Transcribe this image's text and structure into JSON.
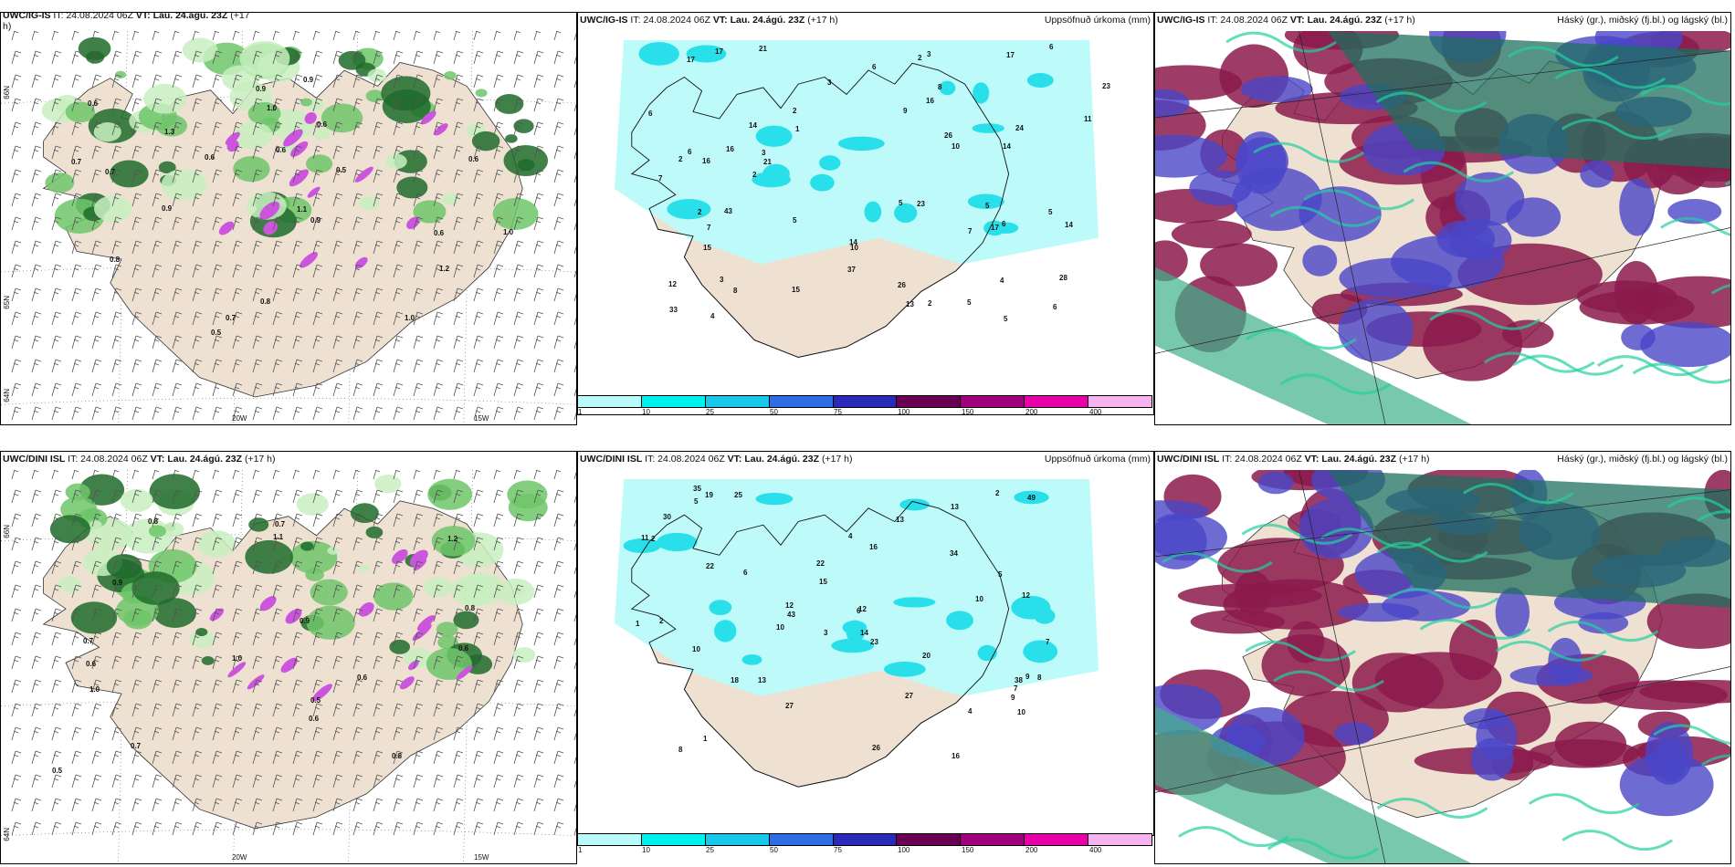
{
  "row1": {
    "left_title_model": "UWC/IG-IS",
    "left_title_rest": " IT: 24.08.2024 06Z ",
    "left_title_vt": "VT: Lau. 24.ágú. 23Z",
    "left_title_tail": " (+17",
    "left_title_wrap": "h)",
    "mid_title_model": "UWC/IG-IS",
    "mid_title_rest": " IT: 24.08.2024 06Z ",
    "mid_title_vt": "VT: Lau. 24.ágú. 23Z",
    "mid_title_tail": " (+17 h)",
    "mid_right": "Uppsöfnuð úrkoma (mm)",
    "right_title_model": "UWC/IG-IS",
    "right_title_rest": " IT: 24.08.2024 06Z ",
    "right_title_vt": "VT: Lau. 24.ágú. 23Z",
    "right_title_tail": " (+17 h)",
    "right_right": "Háský (gr.), miðský (fj.bl.) og lágský (bl.)"
  },
  "row2": {
    "left_title_model": "UWC/DINI ISL",
    "left_title_rest": " IT: 24.08.2024 06Z ",
    "left_title_vt": "VT: Lau. 24.ágú. 23Z",
    "left_title_tail": " (+17 h)",
    "mid_title_model": "UWC/DINI ISL",
    "mid_title_rest": " IT: 24.08.2024 06Z ",
    "mid_title_vt": "VT: Lau. 24.ágú. 23Z",
    "mid_title_tail": " (+17 h)",
    "mid_right": "Uppsöfnuð úrkoma (mm)",
    "right_title_model": "UWC/DINI ISL",
    "right_title_rest": " IT: 24.08.2024 06Z ",
    "right_title_vt": "VT: Lau. 24.ágú. 23Z",
    "right_title_tail": " (+17 h)",
    "right_right": "Háský (gr.), miðský (fj.bl.) og lágský (bl.)"
  },
  "axis": {
    "lon_20w": "20W",
    "lon_15w": "15W",
    "lat_66n": "66N",
    "lat_64n": "64N",
    "lat_65n": "65N"
  },
  "precip_scale": {
    "ticks": [
      "1",
      "10",
      "25",
      "50",
      "75",
      "100",
      "150",
      "200",
      "400"
    ],
    "colors": [
      "#b9fbfb",
      "#00f0f0",
      "#18c8e8",
      "#2f6de6",
      "#2a2ab8",
      "#6a0052",
      "#a0007e",
      "#e800a8",
      "#f5b4f0"
    ]
  },
  "precip_values_top": [
    "6",
    "17",
    "43",
    "15",
    "7",
    "6",
    "5",
    "5",
    "10",
    "12",
    "14",
    "14",
    "21",
    "8",
    "13",
    "14",
    "23",
    "17",
    "11",
    "26",
    "8",
    "17",
    "15",
    "3",
    "2",
    "3",
    "6",
    "5",
    "4",
    "2",
    "6",
    "9",
    "7",
    "5",
    "2",
    "16",
    "37",
    "24",
    "28",
    "26",
    "14",
    "16",
    "23",
    "5",
    "21",
    "33",
    "17",
    "16",
    "7",
    "4",
    "6",
    "5",
    "1",
    "3",
    "3",
    "2",
    "2",
    "10",
    "2",
    "6"
  ],
  "precip_values_bottom": [
    "2",
    "49",
    "43",
    "35",
    "38",
    "34",
    "18",
    "25",
    "13",
    "20",
    "15",
    "12",
    "13",
    "16",
    "10",
    "10",
    "22",
    "9",
    "8",
    "7",
    "6",
    "5",
    "4",
    "8",
    "19",
    "12",
    "11",
    "16",
    "13",
    "30",
    "26",
    "22",
    "27",
    "23",
    "14",
    "10",
    "12",
    "27",
    "10",
    "9",
    "5",
    "4",
    "2",
    "3",
    "1",
    "2",
    "7",
    "6",
    "1"
  ],
  "temp_values_top": [
    "0.8",
    "1.0",
    "0.6",
    "0.9",
    "0.7",
    "1.2",
    "1.1",
    "0.5",
    "0.6",
    "0.7",
    "1.0",
    "0.8",
    "0.9",
    "0.6",
    "1.3",
    "0.7",
    "0.5",
    "0.6",
    "0.9",
    "1.0",
    "0.6",
    "0.9",
    "0.6"
  ],
  "temp_values_bottom": [
    "0.6",
    "1.1",
    "0.9",
    "0.8",
    "0.7",
    "1.0",
    "0.5",
    "0.6",
    "0.7",
    "1.2",
    "0.8",
    "0.9",
    "0.5",
    "0.6",
    "1.0",
    "0.7",
    "0.8",
    "0.6"
  ],
  "colors": {
    "land": "#efe1d2",
    "green_light": "#c8efc0",
    "green_mid": "#6fc56a",
    "green_dark": "#1e6b2a",
    "magenta": "#cc55dd",
    "precip_light": "#b9fbfb",
    "precip_mid": "#29e0ea",
    "cloud_high": "#1f6f5d",
    "cloud_mid": "#4a46c8",
    "cloud_low": "#8b1a4c"
  }
}
